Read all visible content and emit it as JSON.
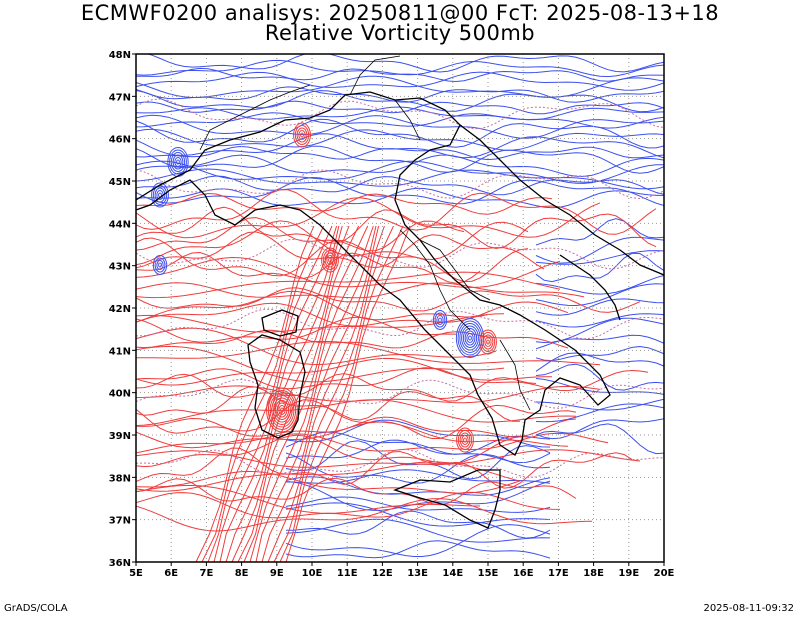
{
  "title_line1": "ECMWF0200 analisys: 20250811@00 FcT: 2025-08-13+18",
  "title_line2": "Relative Vorticity 500mb",
  "footer_left": "GrADS/COLA",
  "footer_right": "2025-08-11-09:32",
  "lon_labels": [
    "5E",
    "6E",
    "7E",
    "8E",
    "9E",
    "10E",
    "11E",
    "12E",
    "13E",
    "14E",
    "15E",
    "16E",
    "17E",
    "18E",
    "19E",
    "20E"
  ],
  "lat_labels": [
    "48N",
    "47N",
    "46N",
    "45N",
    "44N",
    "43N",
    "42N",
    "41N",
    "40N",
    "39N",
    "38N",
    "37N",
    "36N"
  ],
  "colors": {
    "positive_vorticity": "#f03c3c",
    "negative_vorticity": "#3c50f0",
    "coastline": "#000000",
    "grid": "#9a9a9a",
    "zero_contour": "#c86ea0"
  }
}
